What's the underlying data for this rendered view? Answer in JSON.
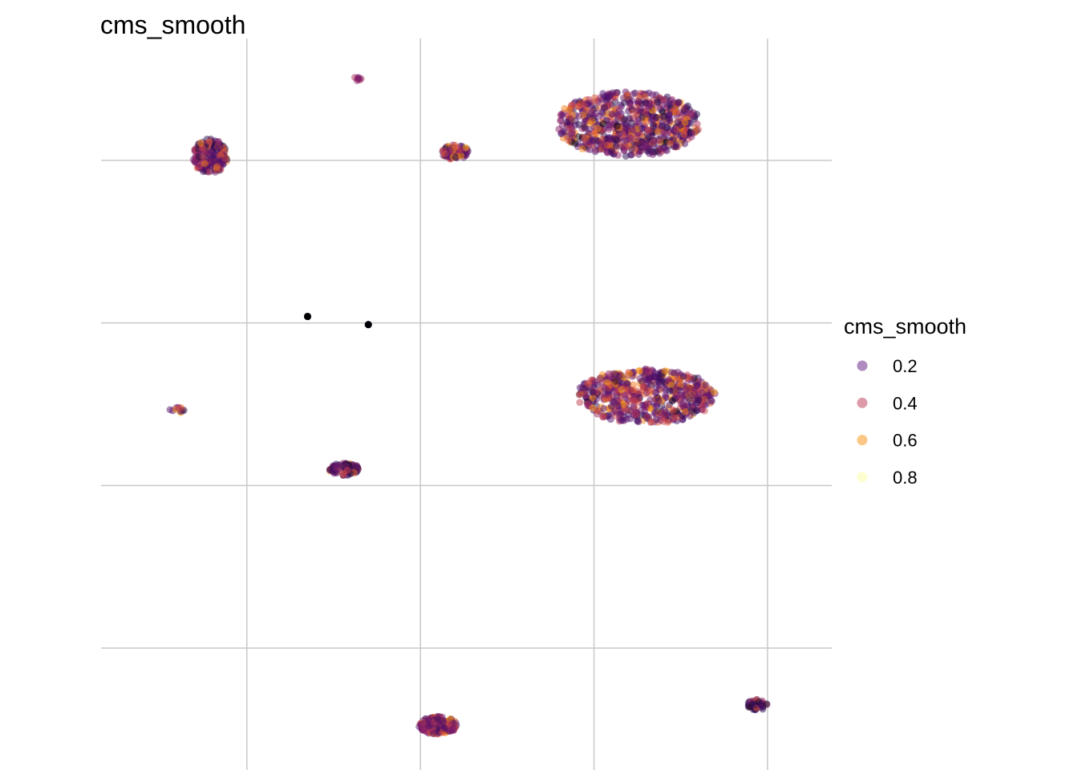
{
  "chart_data": {
    "type": "scatter",
    "title": "cms_smooth",
    "xlabel": "",
    "ylabel": "",
    "grid": true,
    "axis_ticks_shown": false,
    "legend": {
      "title": "cms_smooth",
      "placement": "right",
      "entries": [
        {
          "label": "0.2",
          "value": 0.2,
          "color": "#5f187f"
        },
        {
          "label": "0.4",
          "value": 0.4,
          "color": "#bc3754"
        },
        {
          "label": "0.6",
          "value": 0.6,
          "color": "#f98e09"
        },
        {
          "label": "0.8",
          "value": 0.8,
          "color": "#fcffa4"
        }
      ]
    },
    "color_scale": "inferno",
    "color_range": [
      0.0,
      0.9
    ],
    "point_opacity": 0.5,
    "clusters": [
      {
        "id": "upper-right",
        "x": 2.2,
        "y": 2.45,
        "spread_x": 0.21,
        "spread_y": 0.2,
        "n": 700,
        "mean_value": 0.35
      },
      {
        "id": "upper-left",
        "x": -0.21,
        "y": 2.05,
        "spread_x": 0.05,
        "spread_y": 0.11,
        "n": 180,
        "mean_value": 0.3
      },
      {
        "id": "top-small",
        "x": 0.63,
        "y": 3.0,
        "spread_x": 0.015,
        "spread_y": 0.015,
        "n": 8,
        "mean_value": 0.55
      },
      {
        "id": "upper-middle",
        "x": 1.2,
        "y": 2.1,
        "spread_x": 0.04,
        "spread_y": 0.045,
        "n": 90,
        "mean_value": 0.4
      },
      {
        "id": "center-right",
        "x": 2.3,
        "y": -0.9,
        "spread_x": 0.2,
        "spread_y": 0.17,
        "n": 600,
        "mean_value": 0.38
      },
      {
        "id": "left-small",
        "x": -0.4,
        "y": -1.07,
        "spread_x": 0.025,
        "spread_y": 0.02,
        "n": 12,
        "mean_value": 0.45
      },
      {
        "id": "middle-left",
        "x": 0.56,
        "y": -1.8,
        "spread_x": 0.045,
        "spread_y": 0.04,
        "n": 90,
        "mean_value": 0.3
      },
      {
        "id": "bottom-middle",
        "x": 1.1,
        "y": -4.95,
        "spread_x": 0.055,
        "spread_y": 0.055,
        "n": 200,
        "mean_value": 0.38
      },
      {
        "id": "bottom-right",
        "x": 2.94,
        "y": -4.7,
        "spread_x": 0.03,
        "spread_y": 0.035,
        "n": 45,
        "mean_value": 0.22
      }
    ],
    "isolated_points": [
      {
        "x": 0.35,
        "y": 0.08,
        "value": 0.0
      },
      {
        "x": 0.7,
        "y": -0.02,
        "value": 0.0
      }
    ],
    "xlim": [
      -0.84,
      3.37
    ],
    "ylim": [
      -5.5,
      3.5
    ],
    "x_gridlines": [
      0,
      1,
      2,
      3
    ],
    "y_gridlines": [
      -4,
      -2,
      0,
      2
    ]
  }
}
